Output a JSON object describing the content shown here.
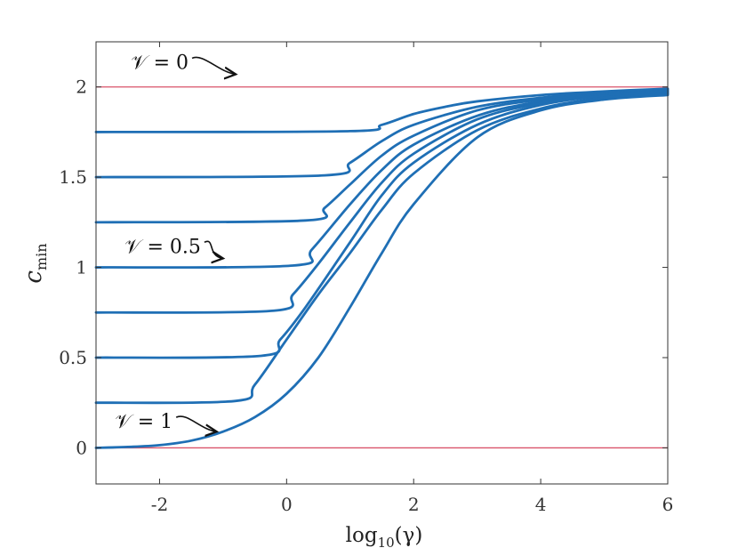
{
  "chart_data": {
    "type": "line",
    "xlabel": "log10(γ)",
    "ylabel": "c_min",
    "xlim": [
      -3,
      6
    ],
    "ylim": [
      -0.2,
      2.25
    ],
    "xticks": [
      -2,
      0,
      2,
      4,
      6
    ],
    "xtick_labels": [
      "-2",
      "0",
      "2",
      "4",
      "6"
    ],
    "yticks": [
      0,
      0.5,
      1,
      1.5,
      2
    ],
    "ytick_labels": [
      "0",
      "0.5",
      "1",
      "1.5",
      "2"
    ],
    "grid": false,
    "colors": {
      "curve": "#1f6fb5",
      "reference": "#d9536a"
    },
    "reference_lines": [
      {
        "y": 2
      },
      {
        "y": 0
      }
    ],
    "series": [
      {
        "x": [
          -3,
          1.0,
          1.5,
          2,
          2.5,
          3,
          4,
          5,
          6
        ],
        "y": [
          1.75,
          1.755,
          1.79,
          1.85,
          1.89,
          1.92,
          1.955,
          1.975,
          1.99
        ]
      },
      {
        "x": [
          -3,
          0.6,
          1,
          1.5,
          2,
          3,
          4,
          5,
          6
        ],
        "y": [
          1.5,
          1.51,
          1.58,
          1.7,
          1.79,
          1.89,
          1.94,
          1.97,
          1.985
        ]
      },
      {
        "x": [
          -3,
          0.3,
          0.6,
          1,
          1.5,
          2,
          3,
          4,
          5,
          6
        ],
        "y": [
          1.25,
          1.26,
          1.33,
          1.46,
          1.62,
          1.73,
          1.87,
          1.93,
          1.965,
          1.98
        ]
      },
      {
        "x": [
          -3,
          0.1,
          0.4,
          1,
          1.5,
          2,
          3,
          4,
          5,
          6
        ],
        "y": [
          1.0,
          1.01,
          1.1,
          1.35,
          1.54,
          1.68,
          1.84,
          1.92,
          1.96,
          1.975
        ]
      },
      {
        "x": [
          -3,
          -0.2,
          0.1,
          0.5,
          1,
          1.5,
          2,
          3,
          4,
          5,
          6
        ],
        "y": [
          0.75,
          0.76,
          0.85,
          1.02,
          1.25,
          1.47,
          1.63,
          1.82,
          1.91,
          1.955,
          1.97
        ]
      },
      {
        "x": [
          -3,
          -0.4,
          -0.1,
          0.3,
          1,
          1.5,
          2,
          3,
          4,
          5,
          6
        ],
        "y": [
          0.5,
          0.51,
          0.6,
          0.78,
          1.14,
          1.4,
          1.58,
          1.79,
          1.9,
          1.95,
          1.965
        ]
      },
      {
        "x": [
          -3,
          -0.8,
          -0.5,
          0,
          0.5,
          1,
          1.5,
          2,
          3,
          4,
          5,
          6
        ],
        "y": [
          0.25,
          0.26,
          0.35,
          0.6,
          0.85,
          1.08,
          1.32,
          1.52,
          1.76,
          1.88,
          1.94,
          1.96
        ]
      },
      {
        "x": [
          -3,
          -2.5,
          -2,
          -1.5,
          -1,
          -0.5,
          0,
          0.5,
          1,
          1.5,
          2,
          3,
          4,
          5,
          6
        ],
        "y": [
          0.0,
          0.005,
          0.015,
          0.04,
          0.09,
          0.17,
          0.3,
          0.5,
          0.78,
          1.08,
          1.35,
          1.72,
          1.87,
          1.93,
          1.955
        ]
      }
    ],
    "annotations": [
      {
        "label": "𝒱 = 0",
        "x": -2.45,
        "y": 2.1,
        "arrow_to": [
          -0.8,
          2.07
        ]
      },
      {
        "label": "𝒱 = 0.5",
        "x": -2.55,
        "y": 1.08,
        "arrow_to": [
          -1.0,
          1.05
        ]
      },
      {
        "label": "𝒱 = 1",
        "x": -2.7,
        "y": 0.11,
        "arrow_to": [
          -1.1,
          0.09
        ]
      }
    ]
  }
}
